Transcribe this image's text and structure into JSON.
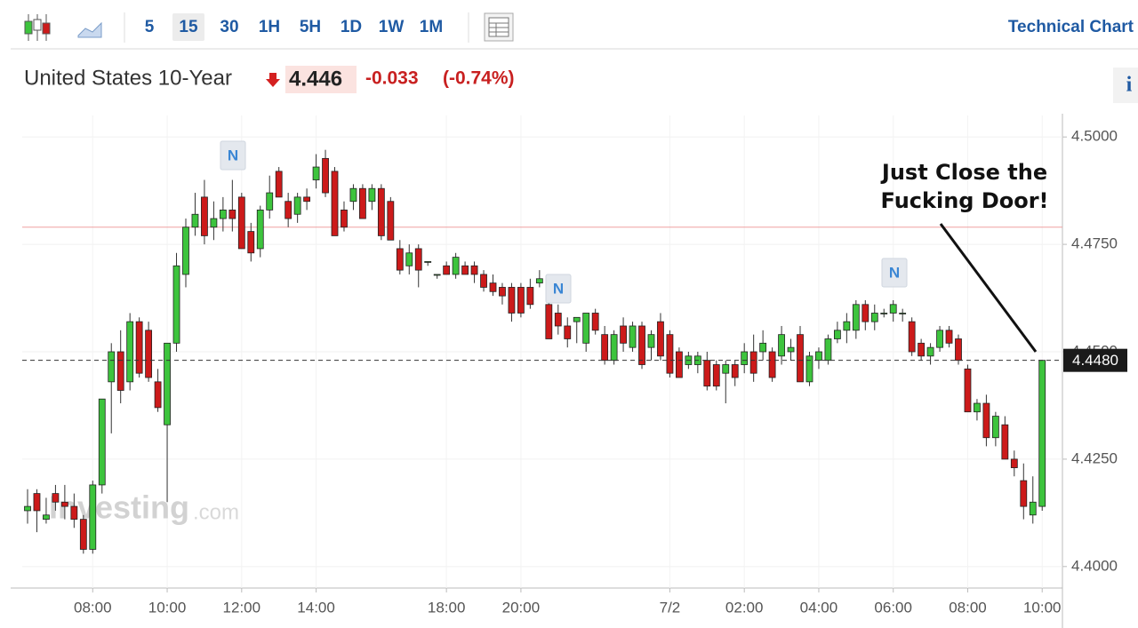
{
  "toolbar": {
    "intervals": [
      "5",
      "15",
      "30",
      "1H",
      "5H",
      "1D",
      "1W",
      "1M"
    ],
    "active_interval": "15",
    "title": "Technical Chart"
  },
  "quote": {
    "name": "United States 10-Year",
    "last": "4.446",
    "change": "-0.033",
    "change_pct": "(-0.74%)"
  },
  "info": "i",
  "chart_data": {
    "type": "candlestick",
    "categories": [
      null,
      null,
      null,
      null,
      null,
      null,
      null,
      "08:00",
      null,
      null,
      null,
      null,
      null,
      null,
      null,
      "10:00",
      null,
      null,
      null,
      null,
      null,
      null,
      null,
      "12:00",
      null,
      null,
      null,
      null,
      null,
      null,
      null,
      "14:00",
      null,
      null,
      null,
      null,
      null,
      null,
      null,
      null,
      null,
      null,
      null,
      null,
      null,
      "18:00",
      null,
      null,
      null,
      null,
      null,
      null,
      null,
      "20:00",
      null,
      null,
      null,
      null,
      null,
      null,
      null,
      null,
      null,
      null,
      null,
      null,
      null,
      null,
      null,
      "7/2",
      null,
      null,
      null,
      null,
      null,
      null,
      null,
      "02:00",
      null,
      null,
      null,
      null,
      null,
      null,
      null,
      "04:00",
      null,
      null,
      null,
      null,
      null,
      null,
      null,
      "06:00",
      null,
      null,
      null,
      null,
      null,
      null,
      null,
      "08:00",
      null,
      null,
      null,
      null,
      null,
      null,
      null,
      "10:00"
    ],
    "open": [
      4.413,
      4.417,
      4.411,
      4.417,
      4.415,
      4.414,
      4.411,
      4.404,
      4.419,
      4.443,
      4.45,
      4.443,
      4.457,
      4.455,
      4.443,
      4.433,
      4.452,
      4.468,
      4.479,
      4.486,
      4.479,
      4.481,
      4.483,
      4.486,
      4.478,
      4.474,
      4.483,
      4.492,
      4.485,
      4.482,
      4.486,
      4.49,
      4.495,
      4.492,
      4.483,
      4.485,
      4.488,
      4.485,
      4.488,
      4.485,
      4.474,
      4.47,
      4.474,
      4.471,
      4.468,
      4.47,
      4.468,
      4.47,
      4.47,
      4.468,
      4.466,
      4.465,
      4.465,
      4.465,
      4.465,
      4.466,
      4.461,
      4.459,
      4.456,
      4.457,
      4.452,
      4.459,
      4.454,
      4.448,
      4.456,
      4.451,
      4.456,
      4.451,
      4.457,
      4.454,
      4.45,
      4.447,
      4.447,
      4.448,
      4.447,
      4.445,
      4.447,
      4.447,
      4.45,
      4.45,
      4.45,
      4.449,
      4.45,
      4.454,
      4.443,
      4.448,
      4.448,
      4.453,
      4.455,
      4.455,
      4.461,
      4.457,
      4.459,
      4.459,
      4.459,
      4.457,
      4.452,
      4.449,
      4.451,
      4.455,
      4.453,
      4.446,
      4.436,
      4.438,
      4.43,
      4.433,
      4.425,
      4.42,
      4.412,
      4.414
    ],
    "high": [
      4.418,
      4.418,
      4.416,
      4.419,
      4.419,
      4.417,
      4.412,
      4.42,
      4.439,
      4.452,
      4.455,
      4.459,
      4.458,
      4.457,
      4.446,
      4.452,
      4.473,
      4.481,
      4.487,
      4.49,
      4.485,
      4.486,
      4.49,
      4.487,
      4.48,
      4.484,
      4.491,
      4.493,
      4.487,
      4.487,
      4.488,
      4.496,
      4.497,
      4.493,
      4.485,
      4.489,
      4.489,
      4.489,
      4.489,
      4.486,
      4.476,
      4.475,
      4.475,
      4.471,
      4.468,
      4.471,
      4.473,
      4.471,
      4.471,
      4.469,
      4.468,
      4.466,
      4.466,
      4.466,
      4.467,
      4.469,
      4.462,
      4.461,
      4.458,
      4.458,
      4.459,
      4.46,
      4.456,
      4.455,
      4.458,
      4.457,
      4.457,
      4.455,
      4.459,
      4.455,
      4.451,
      4.45,
      4.45,
      4.45,
      4.448,
      4.448,
      4.448,
      4.452,
      4.454,
      4.455,
      4.451,
      4.456,
      4.453,
      4.456,
      4.45,
      4.451,
      4.454,
      4.457,
      4.459,
      4.462,
      4.462,
      4.461,
      4.46,
      4.462,
      4.46,
      4.458,
      4.453,
      4.452,
      4.456,
      4.456,
      4.454,
      4.447,
      4.439,
      4.44,
      4.436,
      4.435,
      4.427,
      4.424,
      4.421,
      4.448
    ],
    "low": [
      4.41,
      4.408,
      4.41,
      4.413,
      4.411,
      4.409,
      4.403,
      4.403,
      4.417,
      4.431,
      4.438,
      4.441,
      4.444,
      4.443,
      4.436,
      4.415,
      4.45,
      4.465,
      4.477,
      4.475,
      4.476,
      4.478,
      4.478,
      4.474,
      4.471,
      4.472,
      4.481,
      4.486,
      4.479,
      4.48,
      4.483,
      4.488,
      4.486,
      4.477,
      4.478,
      4.483,
      4.481,
      4.483,
      4.476,
      4.476,
      4.468,
      4.468,
      4.465,
      4.47,
      4.467,
      4.468,
      4.467,
      4.468,
      4.466,
      4.464,
      4.463,
      4.461,
      4.457,
      4.458,
      4.46,
      4.465,
      4.453,
      4.454,
      4.451,
      4.452,
      4.45,
      4.454,
      4.447,
      4.447,
      4.45,
      4.45,
      4.446,
      4.448,
      4.448,
      4.444,
      4.444,
      4.446,
      4.445,
      4.441,
      4.441,
      4.438,
      4.442,
      4.445,
      4.443,
      4.448,
      4.443,
      4.447,
      4.448,
      4.443,
      4.442,
      4.446,
      4.447,
      4.452,
      4.452,
      4.453,
      4.455,
      4.455,
      4.458,
      4.457,
      4.457,
      4.449,
      4.448,
      4.447,
      4.45,
      4.451,
      4.447,
      4.436,
      4.434,
      4.428,
      4.428,
      4.425,
      4.421,
      4.411,
      4.41,
      4.413
    ],
    "close": [
      4.414,
      4.413,
      4.412,
      4.415,
      4.414,
      4.411,
      4.404,
      4.419,
      4.439,
      4.45,
      4.441,
      4.457,
      4.445,
      4.444,
      4.437,
      4.452,
      4.47,
      4.479,
      4.482,
      4.477,
      4.481,
      4.483,
      4.481,
      4.474,
      4.473,
      4.483,
      4.487,
      4.486,
      4.481,
      4.486,
      4.485,
      4.493,
      4.487,
      4.477,
      4.479,
      4.488,
      4.481,
      4.488,
      4.477,
      4.476,
      4.469,
      4.473,
      4.469,
      4.471,
      4.468,
      4.468,
      4.472,
      4.468,
      4.468,
      4.465,
      4.464,
      4.463,
      4.459,
      4.459,
      4.461,
      4.467,
      4.453,
      4.456,
      4.453,
      4.458,
      4.459,
      4.455,
      4.448,
      4.454,
      4.452,
      4.456,
      4.447,
      4.454,
      4.449,
      4.445,
      4.444,
      4.449,
      4.449,
      4.442,
      4.442,
      4.447,
      4.444,
      4.45,
      4.445,
      4.452,
      4.444,
      4.454,
      4.451,
      4.443,
      4.449,
      4.45,
      4.453,
      4.455,
      4.457,
      4.461,
      4.457,
      4.459,
      4.459,
      4.461,
      4.459,
      4.45,
      4.449,
      4.451,
      4.455,
      4.452,
      4.448,
      4.436,
      4.438,
      4.43,
      4.435,
      4.425,
      4.423,
      4.414,
      4.415,
      4.448
    ],
    "up_color": "#3dc43d",
    "down_color": "#cc1a1a",
    "ylim": [
      4.395,
      4.505
    ],
    "yticks": [
      {
        "value": 4.4,
        "label": "4.4000"
      },
      {
        "value": 4.425,
        "label": "4.4250"
      },
      {
        "value": 4.45,
        "label": "4.4500"
      },
      {
        "value": 4.475,
        "label": "4.4750"
      },
      {
        "value": 4.5,
        "label": "4.5000"
      }
    ],
    "grid": true,
    "reference_line": {
      "value": 4.479,
      "color": "#f0a0a0"
    },
    "last_price": {
      "value": 4.448,
      "label": "4.4480"
    },
    "news_markers": [
      "N",
      "N",
      "N"
    ],
    "watermark": [
      "Investing",
      ".com"
    ],
    "annotation": [
      "Just Close the",
      "Fucking Door!"
    ]
  }
}
